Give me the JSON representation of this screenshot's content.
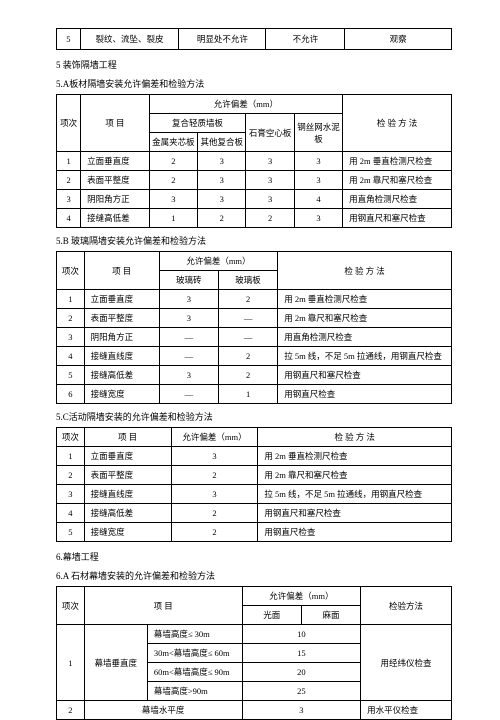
{
  "top": {
    "c1": "5",
    "c2": "裂纹、流坠、裂皮",
    "c3": "明显处不允许",
    "c4": "不允许",
    "c5": "观察"
  },
  "h1": "5 装饰隔墙工程",
  "h1a": "5.A板材隔墙安装允许偏差和检验方法",
  "t1": {
    "hd": {
      "a": "项次",
      "b": "项    目",
      "c": "允许偏差（mm）",
      "d": "复合轻质墙板",
      "e": "金属夹芯板",
      "f": "其他复合板",
      "g": "石膏空心板",
      "h": "钢丝网水泥板",
      "i": "检  验  方  法"
    },
    "r": [
      {
        "n": "1",
        "a": "立面垂直度",
        "v": [
          "2",
          "3",
          "3",
          "3"
        ],
        "m": "用 2m 垂直检测尺检查"
      },
      {
        "n": "2",
        "a": "表面平整度",
        "v": [
          "2",
          "3",
          "3",
          "3"
        ],
        "m": "用 2m 靠尺和塞尺检查"
      },
      {
        "n": "3",
        "a": "阴阳角方正",
        "v": [
          "3",
          "3",
          "3",
          "4"
        ],
        "m": "用直角检测尺检查"
      },
      {
        "n": "4",
        "a": "接缝高低差",
        "v": [
          "1",
          "2",
          "2",
          "3"
        ],
        "m": "用钢直尺和塞尺检查"
      }
    ]
  },
  "h1b": "5.B 玻璃隔墙安装允许偏差和检验方法",
  "t2": {
    "hd": {
      "a": "项次",
      "b": "项    目",
      "c": "允许偏差（mm）",
      "d": "玻璃砖",
      "e": "玻璃板",
      "f": "检   验   方   法"
    },
    "r": [
      {
        "n": "1",
        "a": "立面垂直度",
        "v": [
          "3",
          "2"
        ],
        "m": "用 2m 垂直检测尺检查"
      },
      {
        "n": "2",
        "a": "表面平整度",
        "v": [
          "3",
          "—"
        ],
        "m": "用 2m 靠尺和塞尺检查"
      },
      {
        "n": "3",
        "a": "阴阳角方正",
        "v": [
          "—",
          "—"
        ],
        "m": "用直角检测尺检查"
      },
      {
        "n": "4",
        "a": "接缝直线度",
        "v": [
          "—",
          "2"
        ],
        "m": "拉 5m 线，不足 5m 拉通线，用钢直尺检查"
      },
      {
        "n": "5",
        "a": "接缝高低差",
        "v": [
          "3",
          "2"
        ],
        "m": "用钢直尺和塞尺检查"
      },
      {
        "n": "6",
        "a": "接缝宽度",
        "v": [
          "—",
          "1"
        ],
        "m": "用钢直尺检查"
      }
    ]
  },
  "h1c": "5.C活动隔墙安装的允许偏差和检验方法",
  "t3": {
    "hd": {
      "a": "项次",
      "b": "项    目",
      "c": "允许偏差（mm）",
      "d": "检   验   方   法"
    },
    "r": [
      {
        "n": "1",
        "a": "立面垂直度",
        "v": "3",
        "m": "用 2m 垂直检测尺检查"
      },
      {
        "n": "2",
        "a": "表面平整度",
        "v": "2",
        "m": "用 2m 靠尺和塞尺检查"
      },
      {
        "n": "3",
        "a": "接缝直线度",
        "v": "3",
        "m": "拉 5m 线，不足 5m 拉通线，用钢直尺检查"
      },
      {
        "n": "4",
        "a": "接缝高低差",
        "v": "2",
        "m": "用钢直尺和塞尺检查"
      },
      {
        "n": "5",
        "a": "接缝宽度",
        "v": "2",
        "m": "用钢直尺检查"
      }
    ]
  },
  "h2": "6.幕墙工程",
  "h2a": "6.A 石材幕墙安装的允许偏差和检验方法",
  "t4": {
    "hd": {
      "a": "项次",
      "b": "项    目",
      "c": "允许偏差（mm）",
      "d": "光面",
      "e": "麻面",
      "f": "检验方法"
    },
    "r1": {
      "n": "1",
      "a": "幕墙垂直度",
      "rows": [
        [
          "幕墙高度≤ 30m",
          "10"
        ],
        [
          "30m<幕墙高度≤ 60m",
          "15"
        ],
        [
          "60m<幕墙高度≤ 90m",
          "20"
        ],
        [
          "幕墙高度>90m",
          "25"
        ]
      ],
      "m": "用经纬仪检查"
    },
    "r2": {
      "n": "2",
      "a": "幕墙水平度",
      "v": "3",
      "m": "用水平仪检查"
    }
  }
}
